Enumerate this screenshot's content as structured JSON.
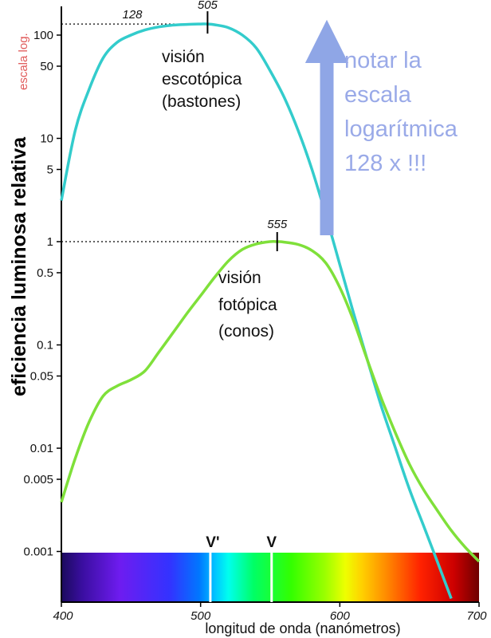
{
  "chart_data": {
    "type": "line",
    "ylabel": "eficiencia luminosa relativa",
    "ylabel_note": "escala log.",
    "xlabel": "longitud de onda (nanómetros)",
    "xlim": [
      400,
      700
    ],
    "ylim": [
      0.001,
      200
    ],
    "yscale": "log",
    "x_ticks": [
      {
        "value": 400,
        "label": "400"
      },
      {
        "value": 500,
        "label": "500"
      },
      {
        "value": 600,
        "label": "600"
      },
      {
        "value": 700,
        "label": "700"
      }
    ],
    "y_ticks": [
      {
        "value": 100,
        "label": "100"
      },
      {
        "value": 50,
        "label": "50"
      },
      {
        "value": 10,
        "label": "10"
      },
      {
        "value": 5,
        "label": "5"
      },
      {
        "value": 1,
        "label": "1"
      },
      {
        "value": 0.5,
        "label": "0.5"
      },
      {
        "value": 0.1,
        "label": "0.1"
      },
      {
        "value": 0.05,
        "label": "0.05"
      },
      {
        "value": 0.01,
        "label": "0.01"
      },
      {
        "value": 0.005,
        "label": "0.005"
      },
      {
        "value": 0.001,
        "label": "0.001"
      }
    ],
    "series": [
      {
        "label": [
          "visión",
          "escotópica",
          "(bastones)"
        ],
        "color": "#33cccc",
        "points": [
          [
            400,
            2.5
          ],
          [
            410,
            12
          ],
          [
            420,
            30
          ],
          [
            430,
            60
          ],
          [
            440,
            85
          ],
          [
            450,
            100
          ],
          [
            460,
            112
          ],
          [
            470,
            120
          ],
          [
            480,
            125
          ],
          [
            490,
            127
          ],
          [
            500,
            128
          ],
          [
            505,
            128
          ],
          [
            510,
            126
          ],
          [
            520,
            118
          ],
          [
            530,
            100
          ],
          [
            540,
            75
          ],
          [
            550,
            45
          ],
          [
            560,
            25
          ],
          [
            570,
            12
          ],
          [
            580,
            5
          ],
          [
            590,
            1.8
          ],
          [
            600,
            0.6
          ],
          [
            610,
            0.2
          ],
          [
            620,
            0.07
          ],
          [
            630,
            0.025
          ],
          [
            640,
            0.01
          ],
          [
            650,
            0.004
          ],
          [
            660,
            0.0018
          ],
          [
            670,
            0.0008
          ],
          [
            680,
            0.00035
          ]
        ]
      },
      {
        "label": [
          "visión",
          "fotópica",
          "(conos)"
        ],
        "color": "#7fe03a",
        "points": [
          [
            400,
            0.003
          ],
          [
            410,
            0.008
          ],
          [
            420,
            0.018
          ],
          [
            430,
            0.032
          ],
          [
            440,
            0.04
          ],
          [
            450,
            0.046
          ],
          [
            460,
            0.056
          ],
          [
            470,
            0.085
          ],
          [
            480,
            0.13
          ],
          [
            490,
            0.2
          ],
          [
            500,
            0.3
          ],
          [
            510,
            0.45
          ],
          [
            520,
            0.65
          ],
          [
            530,
            0.84
          ],
          [
            540,
            0.95
          ],
          [
            550,
            1.0
          ],
          [
            555,
            1.0
          ],
          [
            560,
            0.99
          ],
          [
            570,
            0.94
          ],
          [
            580,
            0.82
          ],
          [
            590,
            0.62
          ],
          [
            600,
            0.36
          ],
          [
            610,
            0.17
          ],
          [
            620,
            0.07
          ],
          [
            630,
            0.03
          ],
          [
            640,
            0.014
          ],
          [
            650,
            0.007
          ],
          [
            660,
            0.004
          ],
          [
            670,
            0.0025
          ],
          [
            680,
            0.0016
          ],
          [
            690,
            0.0011
          ],
          [
            700,
            0.0008
          ]
        ]
      }
    ],
    "annotations": {
      "peak_scotopic": {
        "x": 505,
        "y": 128,
        "label": "505",
        "value_label": "128"
      },
      "peak_photopic": {
        "x": 555,
        "y": 1,
        "label": "555"
      },
      "marker_v_prime": {
        "x": 507,
        "label": "V'"
      },
      "marker_v": {
        "x": 551,
        "label": "V"
      },
      "note": {
        "lines": [
          "notar la",
          "escala",
          "logarítmica",
          "128 x  !!!"
        ],
        "color": "#9aaae8"
      },
      "arrow_color": "#8fa6e6"
    },
    "grid": false,
    "legend": "none"
  }
}
